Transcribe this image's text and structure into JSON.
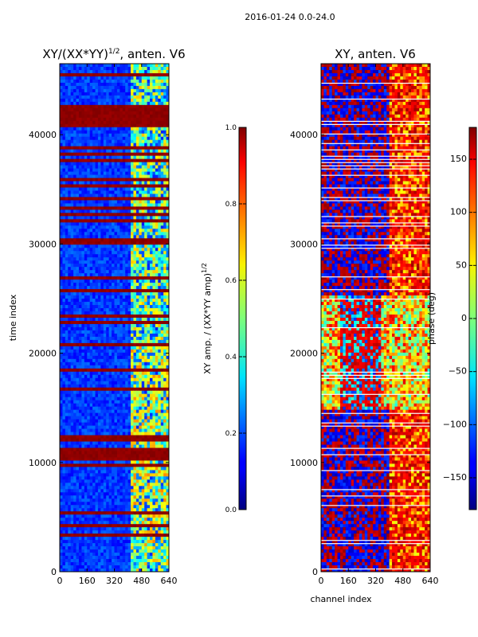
{
  "suptitle": "2016-01-24 0.0-24.0",
  "chart_data": [
    {
      "type": "heatmap",
      "title_main": "XY/(XX*YY)",
      "title_sup": "1/2",
      "title_tail": ", anten. V6",
      "xlabel": "",
      "ylabel": "time index",
      "xlim": [
        0,
        640
      ],
      "ylim": [
        0,
        46500
      ],
      "xticks": [
        0,
        160,
        320,
        480,
        640
      ],
      "yticks": [
        0,
        10000,
        20000,
        30000,
        40000
      ],
      "colorbar": {
        "label_main": "XY amp. / (XX*YY amp)",
        "label_sup": "1/2",
        "range": [
          0.0,
          1.0
        ],
        "ticks": [
          "0.0",
          "0.2",
          "0.4",
          "0.6",
          "0.8",
          "1.0"
        ]
      }
    },
    {
      "type": "heatmap",
      "title_main": "XY, anten. V6",
      "xlabel": "channel index",
      "ylabel": "",
      "xlim": [
        0,
        640
      ],
      "ylim": [
        0,
        46500
      ],
      "xticks": [
        0,
        160,
        320,
        480,
        640
      ],
      "yticks": [
        0,
        10000,
        20000,
        30000,
        40000
      ],
      "colorbar": {
        "label_main": "phase (deg)",
        "range": [
          -180,
          180
        ],
        "ticks": [
          "−150",
          "−100",
          "−50",
          "0",
          "50",
          "100",
          "150"
        ]
      }
    }
  ]
}
